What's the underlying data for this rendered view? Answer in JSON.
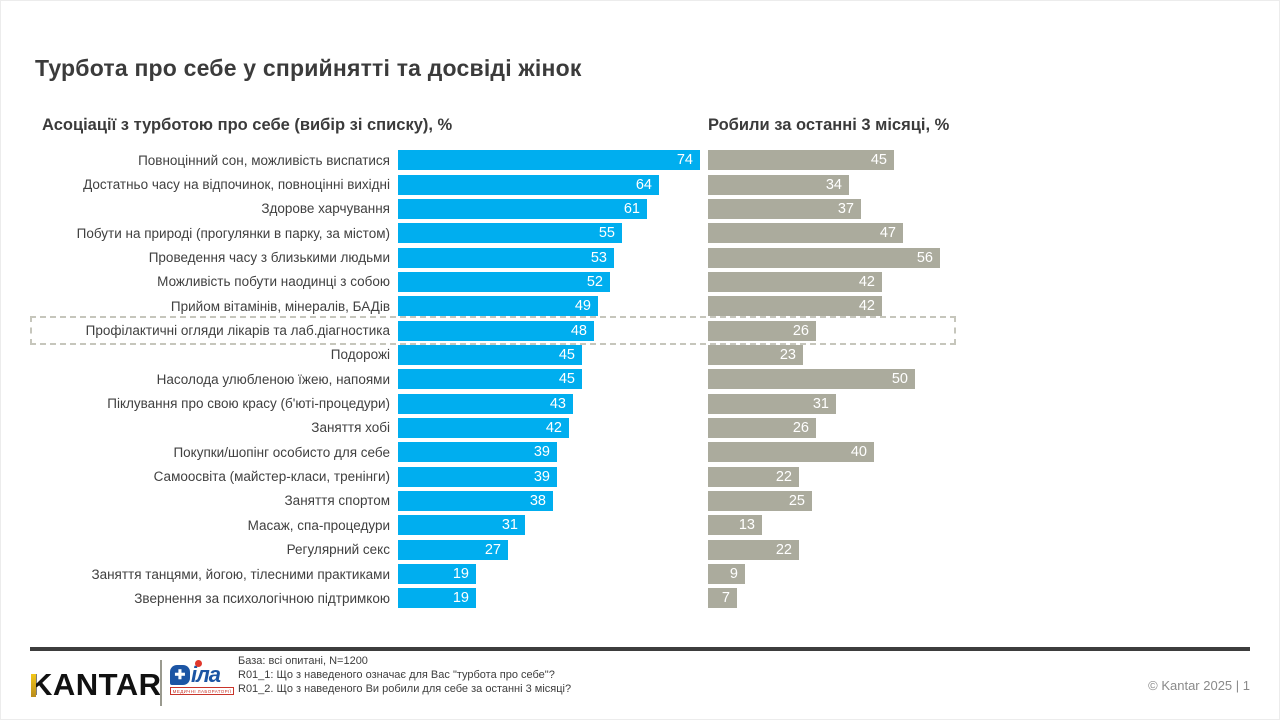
{
  "slide": {
    "title": "Турбота про себе у сприйнятті та досвіді жінок",
    "copyright": "© Kantar 2025 | 1"
  },
  "chart_data": {
    "type": "bar",
    "orientation": "horizontal",
    "left_title": "Асоціації з турботою про себе (вибір зі списку), %",
    "right_title": "Робили за останні 3 місяці, %",
    "categories": [
      "Повноцінний сон, можливість виспатися",
      "Достатньо часу на відпочинок, повноцінні вихідні",
      "Здорове харчування",
      "Побути на природі (прогулянки в парку, за містом)",
      "Проведення часу з близькими людьми",
      "Можливість побути наодинці з собою",
      "Прийом вітамінів, мінералів, БАДів",
      "Профілактичні огляди лікарів та лаб.діагностика",
      "Подорожі",
      "Насолода улюбленою їжею, напоями",
      "Піклування про свою красу (б'юті-процедури)",
      "Заняття хобі",
      "Покупки/шопінг особисто для себе",
      "Самоосвіта (майстер-класи, тренінги)",
      "Заняття спортом",
      "Масаж, спа-процедури",
      "Регулярний секс",
      "Заняття танцями, йогою, тілесними практиками",
      "Звернення за психологічною підтримкою"
    ],
    "series": [
      {
        "name": "Асоціації з турботою про себе (вибір зі списку), %",
        "color": "#00AEEF",
        "values": [
          74,
          64,
          61,
          55,
          53,
          52,
          49,
          48,
          45,
          45,
          43,
          42,
          39,
          39,
          38,
          31,
          27,
          19,
          19
        ]
      },
      {
        "name": "Робили за останні 3 місяці, %",
        "color": "#ABAB9D",
        "values": [
          45,
          34,
          37,
          47,
          56,
          42,
          42,
          26,
          23,
          50,
          31,
          26,
          40,
          22,
          25,
          13,
          22,
          9,
          7
        ]
      }
    ],
    "highlight_index": 7,
    "highlighted_category": "Профілактичні огляди лікарів та лаб.діагностика",
    "value_labels": "inside-end",
    "xlim": [
      0,
      100
    ],
    "grid": false,
    "legend": "none"
  },
  "footer": {
    "kantar_logo": "KANTAR",
    "dila": {
      "name": "Діла",
      "suffix": "іла",
      "tagline": "МЕДИЧНІ ЛАБОРАТОРІЇ"
    },
    "base_note": "База: всі опитані, N=1200",
    "q1_note": "R01_1: Що з наведеного означає для Вас \"турбота про себе\"?",
    "q2_note": "R01_2. Що з наведеного Ви робили для себе за останні 3 місяці?"
  }
}
